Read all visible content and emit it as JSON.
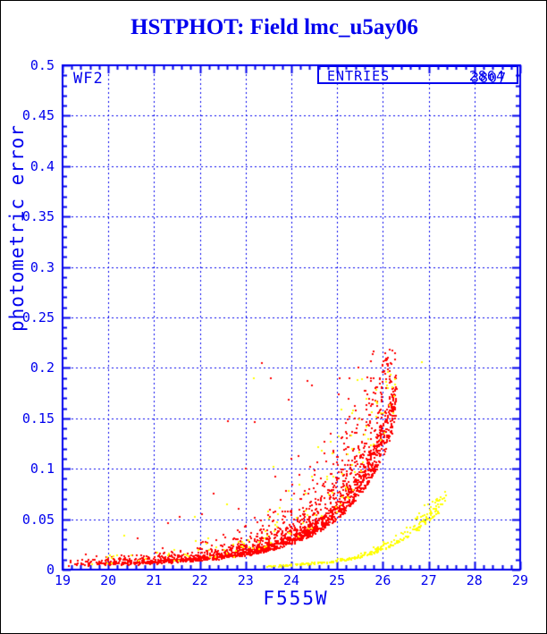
{
  "title": "HSTPHOT: Field lmc_u5ay06",
  "chart_data": {
    "type": "scatter",
    "title": "HSTPHOT: Field lmc_u5ay06",
    "xlabel": "F555W",
    "ylabel": "photometric error",
    "xlim": [
      19,
      29
    ],
    "ylim": [
      0,
      0.5
    ],
    "x_major_step": 1,
    "x_minor_step": 0.2,
    "y_major_step": 0.05,
    "y_minor_step": 0.01,
    "grid": "dashed blue lines at every major tick, ticks inward on all four sides",
    "legend_position": "none",
    "x_tick_labels": [
      "19",
      "20",
      "21",
      "22",
      "23",
      "24",
      "25",
      "26",
      "27",
      "28",
      "29"
    ],
    "y_tick_labels": [
      "0",
      "0.05",
      "0.1",
      "0.15",
      "0.2",
      "0.25",
      "0.3",
      "0.35",
      "0.4",
      "0.45",
      "0.5"
    ],
    "annotations": {
      "chip": "WF2",
      "entries_label": "ENTRIES",
      "entries_values": [
        "2864",
        "3807"
      ],
      "entries_note": "two counts overprinted in the same box"
    },
    "axis_color": "#0000ee",
    "series": [
      {
        "name": "red-error-sequence",
        "color": "#ff0000",
        "marker": "2px square",
        "approx_count": 2200,
        "mag_range": [
          19.0,
          26.3
        ],
        "mag_bias_power": 0.52,
        "lower_envelope": [
          [
            19.0,
            0.004
          ],
          [
            20.0,
            0.005
          ],
          [
            21.0,
            0.0065
          ],
          [
            22.0,
            0.009
          ],
          [
            23.0,
            0.014
          ],
          [
            24.0,
            0.026
          ],
          [
            24.5,
            0.036
          ],
          [
            25.0,
            0.05
          ],
          [
            25.5,
            0.075
          ],
          [
            26.0,
            0.115
          ],
          [
            26.3,
            0.15
          ]
        ],
        "error_cap": 0.22,
        "outliers": [
          [
            23.35,
            0.205
          ],
          [
            23.55,
            0.19
          ],
          [
            23.95,
            0.168
          ],
          [
            22.62,
            0.147
          ],
          [
            23.2,
            0.146
          ],
          [
            24.35,
            0.187
          ],
          [
            24.45,
            0.183
          ],
          [
            25.05,
            0.19
          ],
          [
            24.0,
            0.11
          ],
          [
            24.15,
            0.113
          ],
          [
            22.3,
            0.075
          ],
          [
            21.55,
            0.052
          ],
          [
            21.3,
            0.046
          ],
          [
            20.65,
            0.031
          ],
          [
            23.0,
            0.1
          ],
          [
            23.65,
            0.092
          ],
          [
            22.85,
            0.06
          ],
          [
            22.05,
            0.055
          ],
          [
            24.85,
            0.135
          ],
          [
            25.2,
            0.145
          ]
        ]
      },
      {
        "name": "yellow-upper-scatter",
        "color": "#ffff00",
        "marker": "2px square",
        "approx_count": 130,
        "mag_range": [
          19.0,
          26.3
        ],
        "mag_bias_power": 0.52,
        "factor_above_red_envelope": [
          1.15,
          3.75
        ],
        "error_cap": 0.21,
        "outliers": [
          [
            23.17,
            0.19
          ],
          [
            25.45,
            0.188
          ],
          [
            23.6,
            0.102
          ],
          [
            24.45,
            0.092
          ],
          [
            21.9,
            0.052
          ],
          [
            20.35,
            0.034
          ],
          [
            25.3,
            0.133
          ],
          [
            22.6,
            0.065
          ],
          [
            24.9,
            0.115
          ],
          [
            26.85,
            0.206
          ]
        ]
      },
      {
        "name": "yellow-error-sequence",
        "color": "#ffff00",
        "marker": "2px square",
        "approx_count": 280,
        "mag_range": [
          23.3,
          27.4
        ],
        "mag_bias_power": 0.6,
        "trend": [
          [
            23.3,
            0.0025
          ],
          [
            24.0,
            0.004
          ],
          [
            25.0,
            0.008
          ],
          [
            25.5,
            0.012
          ],
          [
            26.0,
            0.02
          ],
          [
            26.5,
            0.032
          ],
          [
            27.0,
            0.05
          ],
          [
            27.4,
            0.068
          ]
        ],
        "error_cap": 0.078,
        "outliers": [
          [
            27.2,
            0.065
          ],
          [
            27.05,
            0.062
          ]
        ]
      }
    ],
    "render_seed": 12345
  }
}
